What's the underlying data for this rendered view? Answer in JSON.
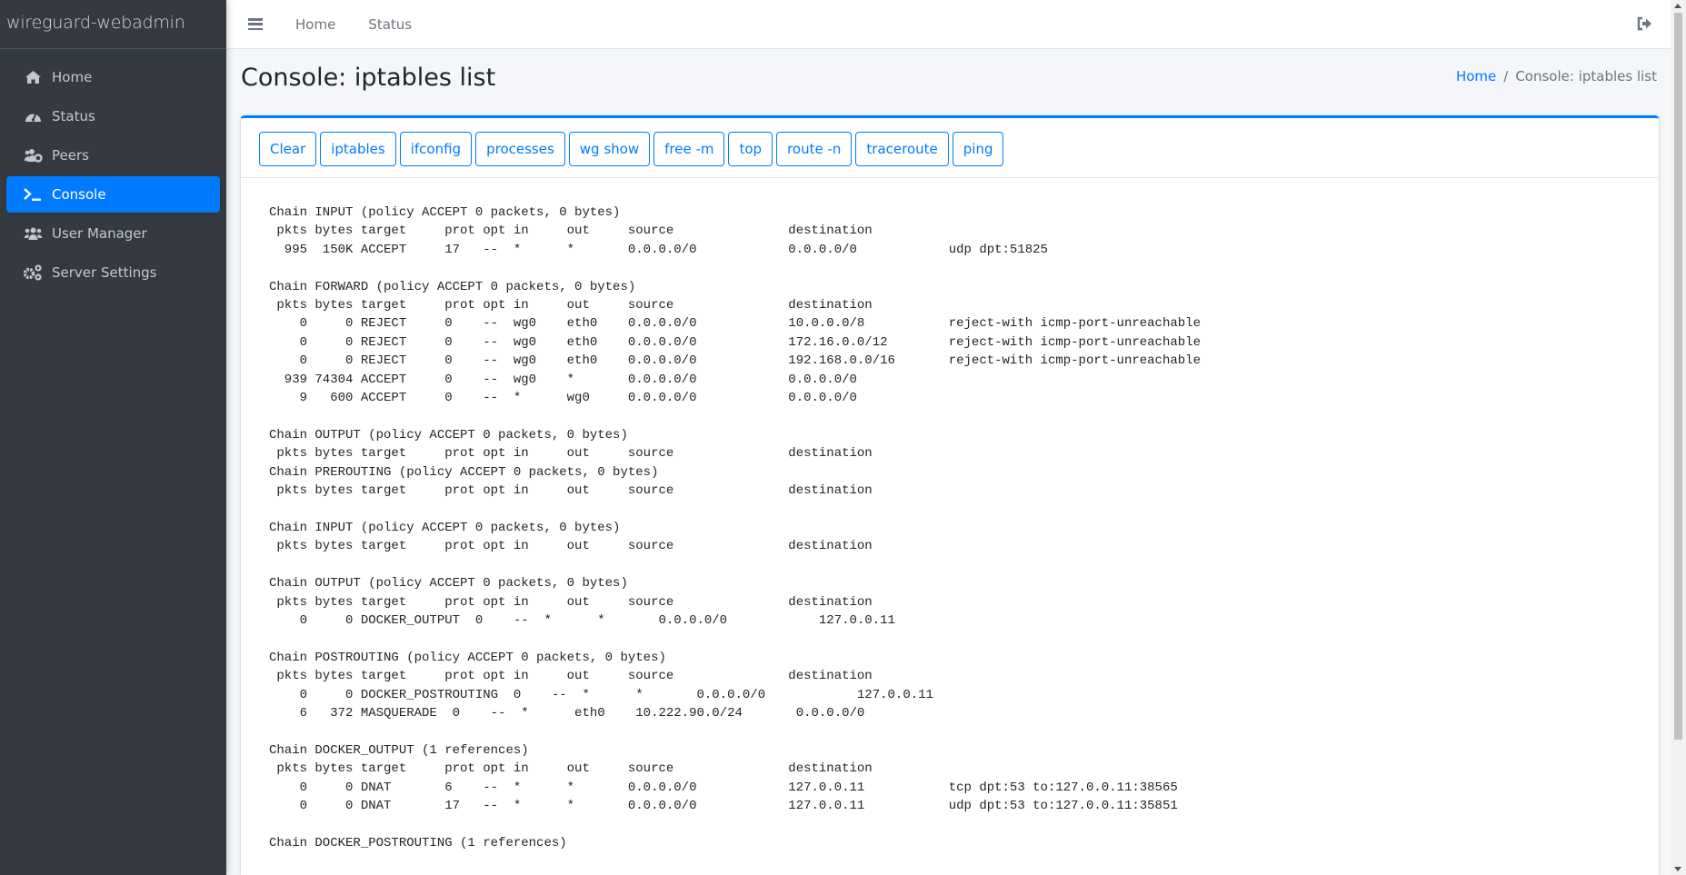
{
  "brand": "wireguard-webadmin",
  "sidebar": {
    "items": [
      {
        "label": "Home",
        "icon": "home-icon"
      },
      {
        "label": "Status",
        "icon": "tachometer-icon"
      },
      {
        "label": "Peers",
        "icon": "users-cog-icon"
      },
      {
        "label": "Console",
        "icon": "terminal-icon",
        "active": true
      },
      {
        "label": "User Manager",
        "icon": "users-icon"
      },
      {
        "label": "Server Settings",
        "icon": "cogs-icon"
      }
    ]
  },
  "topbar": {
    "links": [
      "Home",
      "Status"
    ],
    "menu_icon": "hamburger-icon",
    "logout_icon": "sign-out-icon"
  },
  "page": {
    "title": "Console: iptables list",
    "breadcrumb": {
      "home": "Home",
      "separator": "/",
      "current": "Console: iptables list"
    }
  },
  "colors": {
    "accent": "#007bff",
    "sidebar": "#343a40"
  },
  "console": {
    "buttons": [
      "Clear",
      "iptables",
      "ifconfig",
      "processes",
      "wg show",
      "free -m",
      "top",
      "route -n",
      "traceroute",
      "ping"
    ],
    "output": "Chain INPUT (policy ACCEPT 0 packets, 0 bytes)\n pkts bytes target     prot opt in     out     source               destination\n  995  150K ACCEPT     17   --  *      *       0.0.0.0/0            0.0.0.0/0            udp dpt:51825\n\nChain FORWARD (policy ACCEPT 0 packets, 0 bytes)\n pkts bytes target     prot opt in     out     source               destination\n    0     0 REJECT     0    --  wg0    eth0    0.0.0.0/0            10.0.0.0/8           reject-with icmp-port-unreachable\n    0     0 REJECT     0    --  wg0    eth0    0.0.0.0/0            172.16.0.0/12        reject-with icmp-port-unreachable\n    0     0 REJECT     0    --  wg0    eth0    0.0.0.0/0            192.168.0.0/16       reject-with icmp-port-unreachable\n  939 74304 ACCEPT     0    --  wg0    *       0.0.0.0/0            0.0.0.0/0\n    9   600 ACCEPT     0    --  *      wg0     0.0.0.0/0            0.0.0.0/0\n\nChain OUTPUT (policy ACCEPT 0 packets, 0 bytes)\n pkts bytes target     prot opt in     out     source               destination\nChain PREROUTING (policy ACCEPT 0 packets, 0 bytes)\n pkts bytes target     prot opt in     out     source               destination\n\nChain INPUT (policy ACCEPT 0 packets, 0 bytes)\n pkts bytes target     prot opt in     out     source               destination\n\nChain OUTPUT (policy ACCEPT 0 packets, 0 bytes)\n pkts bytes target     prot opt in     out     source               destination\n    0     0 DOCKER_OUTPUT  0    --  *      *       0.0.0.0/0            127.0.0.11\n\nChain POSTROUTING (policy ACCEPT 0 packets, 0 bytes)\n pkts bytes target     prot opt in     out     source               destination\n    0     0 DOCKER_POSTROUTING  0    --  *      *       0.0.0.0/0            127.0.0.11\n    6   372 MASQUERADE  0    --  *      eth0    10.222.90.0/24       0.0.0.0/0\n\nChain DOCKER_OUTPUT (1 references)\n pkts bytes target     prot opt in     out     source               destination\n    0     0 DNAT       6    --  *      *       0.0.0.0/0            127.0.0.11           tcp dpt:53 to:127.0.0.11:38565\n    0     0 DNAT       17   --  *      *       0.0.0.0/0            127.0.0.11           udp dpt:53 to:127.0.0.11:35851\n\nChain DOCKER_POSTROUTING (1 references)"
  }
}
